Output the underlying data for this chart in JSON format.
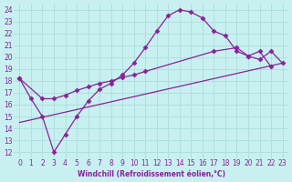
{
  "xlabel": "Windchill (Refroidissement éolien,°C)",
  "bg_color": "#c8f0f0",
  "grid_color": "#b0dede",
  "line_color": "#882299",
  "xlim": [
    -0.5,
    23.5
  ],
  "ylim": [
    11.5,
    24.5
  ],
  "xticks": [
    0,
    1,
    2,
    3,
    4,
    5,
    6,
    7,
    8,
    9,
    10,
    11,
    12,
    13,
    14,
    15,
    16,
    17,
    18,
    19,
    20,
    21,
    22,
    23
  ],
  "yticks": [
    12,
    13,
    14,
    15,
    16,
    17,
    18,
    19,
    20,
    21,
    22,
    23,
    24
  ],
  "curve1_x": [
    0,
    1,
    2,
    3,
    4,
    5,
    6,
    7,
    8,
    9,
    10,
    11,
    12,
    13,
    14,
    15,
    16,
    17,
    18,
    19,
    20,
    21,
    22
  ],
  "curve1_y": [
    18.2,
    16.5,
    15.0,
    12.0,
    13.5,
    15.0,
    16.3,
    17.3,
    17.8,
    18.5,
    19.5,
    20.8,
    22.2,
    23.5,
    24.0,
    23.8,
    23.3,
    22.2,
    21.8,
    20.5,
    20.1,
    20.5,
    19.2
  ],
  "curve2_x": [
    0,
    2,
    3,
    4,
    5,
    6,
    7,
    8,
    9,
    10,
    11,
    17,
    19,
    20,
    21,
    22,
    23
  ],
  "curve2_y": [
    18.2,
    16.5,
    16.5,
    16.8,
    17.2,
    17.5,
    17.8,
    18.0,
    18.3,
    18.5,
    18.8,
    20.5,
    20.8,
    20.1,
    19.8,
    20.5,
    19.5
  ],
  "line3_x": [
    0,
    23
  ],
  "line3_y": [
    14.5,
    19.5
  ],
  "marker": "D",
  "markersize": 2.5,
  "linewidth": 0.9,
  "tick_fontsize": 5.5,
  "xlabel_fontsize": 5.5
}
